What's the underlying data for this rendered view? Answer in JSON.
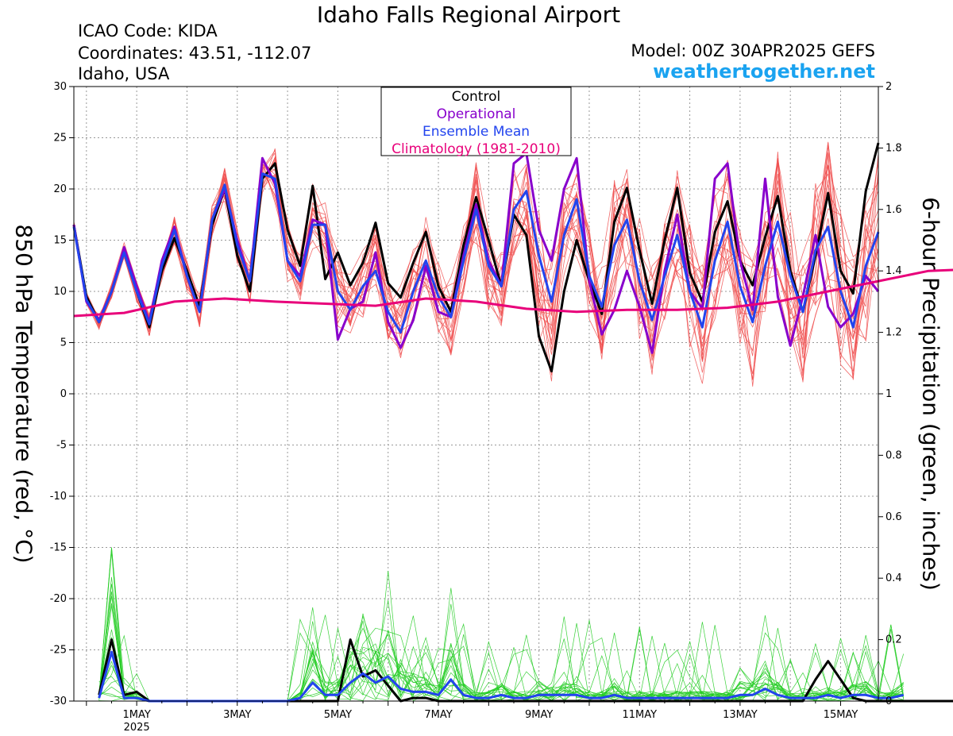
{
  "header": {
    "title": "Idaho Falls Regional Airport",
    "icao": "ICAO Code: KIDA",
    "coordinates": "Coordinates: 43.51, -112.07",
    "region": "Idaho, USA",
    "model": "Model: 00Z 30APR2025 GEFS",
    "site": "weathertogether.net"
  },
  "chart_data": {
    "type": "line",
    "ylabel_left": "850 hPa Temperature (red, °C)",
    "ylabel_right": "6-hour Precipitation (green, inches)",
    "ylim_left": [
      -30,
      30
    ],
    "yticks_left": [
      30,
      25,
      20,
      15,
      10,
      5,
      0,
      -5,
      -10,
      -15,
      -20,
      -25,
      -30
    ],
    "ylim_right": [
      0,
      2
    ],
    "yticks_right": [
      "2",
      "1.8",
      "1.6",
      "1.4",
      "1.2",
      "1",
      "0.8",
      "0.6",
      "0.4",
      "0.2",
      "0"
    ],
    "x_day_range": [
      -0.75,
      15.25
    ],
    "x_ticks": [
      {
        "day": 0.5,
        "label": "1MAY",
        "sub": "2025"
      },
      {
        "day": 2.5,
        "label": "3MAY"
      },
      {
        "day": 4.5,
        "label": "5MAY"
      },
      {
        "day": 6.5,
        "label": "7MAY"
      },
      {
        "day": 8.5,
        "label": "9MAY"
      },
      {
        "day": 10.5,
        "label": "11MAY"
      },
      {
        "day": 12.5,
        "label": "13MAY"
      },
      {
        "day": 14.5,
        "label": "15MAY"
      }
    ],
    "grid": true,
    "legend_position": "top-center",
    "legend": [
      {
        "name": "Control",
        "color": "#000000"
      },
      {
        "name": "Operational",
        "color": "#8800cc"
      },
      {
        "name": "Ensemble Mean",
        "color": "#2244ee"
      },
      {
        "name": "Climatology (1981-2010)",
        "color": "#e8007a"
      }
    ],
    "temperature_series": [
      {
        "name": "Control",
        "color": "#000000",
        "x_start_day": -0.75,
        "step_days": 0.25,
        "values": [
          16.5,
          9.5,
          7.0,
          10.0,
          14.0,
          10.0,
          6.5,
          12.0,
          15.2,
          12.0,
          8.5,
          16.5,
          20.0,
          13.5,
          10.0,
          21.0,
          22.5,
          16.0,
          12.5,
          20.3,
          11.2,
          13.8,
          10.6,
          12.8,
          16.7,
          10.8,
          9.4,
          12.8,
          15.8,
          10.5,
          8.0,
          14.5,
          19.2,
          15.0,
          10.5,
          17.5,
          15.5,
          5.6,
          2.2,
          10.0,
          15.0,
          11.0,
          7.8,
          16.8,
          20.1,
          14.0,
          8.8,
          15.0,
          20.1,
          11.8,
          9.0,
          15.8,
          18.8,
          13.0,
          10.6,
          15.3,
          19.3,
          12.0,
          8.0,
          13.5,
          19.6,
          12.0,
          9.8,
          19.8,
          24.5
        ]
      },
      {
        "name": "Operational",
        "color": "#8800cc",
        "x_start_day": -0.75,
        "step_days": 0.25,
        "values": [
          16.5,
          9.0,
          7.2,
          10.0,
          14.3,
          10.5,
          7.0,
          13.0,
          16.3,
          11.5,
          8.0,
          17.0,
          20.0,
          15.0,
          11.0,
          23.0,
          20.5,
          13.0,
          11.5,
          17.0,
          16.5,
          5.3,
          8.3,
          9.0,
          13.8,
          7.0,
          4.5,
          7.2,
          12.5,
          8.0,
          7.5,
          13.5,
          18.5,
          13.0,
          10.5,
          22.5,
          23.5,
          16.0,
          13.0,
          20.0,
          23.0,
          11.0,
          5.8,
          8.2,
          12.0,
          8.5,
          4.0,
          12.0,
          17.5,
          10.0,
          8.3,
          21.0,
          22.5,
          13.0,
          8.2,
          21.0,
          9.5,
          4.7,
          9.5,
          15.5,
          8.5,
          6.5,
          7.8,
          11.5,
          10.0
        ]
      },
      {
        "name": "Ensemble Mean",
        "color": "#2244ee",
        "x_start_day": -0.75,
        "step_days": 0.25,
        "values": [
          16.3,
          9.2,
          7.0,
          10.0,
          13.8,
          10.0,
          6.8,
          12.5,
          16.0,
          11.5,
          8.0,
          17.0,
          20.4,
          14.5,
          11.0,
          21.5,
          21.0,
          13.0,
          11.0,
          16.5,
          16.5,
          10.0,
          8.2,
          10.5,
          12.0,
          8.0,
          6.0,
          10.0,
          13.0,
          9.5,
          7.5,
          13.0,
          18.0,
          12.5,
          10.5,
          18.0,
          19.8,
          13.5,
          9.0,
          15.5,
          19.0,
          11.5,
          8.5,
          14.5,
          17.0,
          11.0,
          7.2,
          11.5,
          15.5,
          10.0,
          6.5,
          13.0,
          16.8,
          10.5,
          7.0,
          12.5,
          16.8,
          11.5,
          8.0,
          14.0,
          16.3,
          10.0,
          6.5,
          12.5,
          15.8
        ]
      },
      {
        "name": "Climatology (1981-2010)",
        "color": "#e8007a",
        "x_start_day": -0.75,
        "step_days": 1.0,
        "values": [
          7.6,
          7.9,
          9.0,
          9.3,
          9.0,
          8.8,
          8.6,
          9.3,
          9.0,
          8.3,
          8.0,
          8.2,
          8.2,
          8.4,
          9.0,
          10.0,
          11.0,
          12.0,
          12.2
        ]
      }
    ],
    "precipitation_series": [
      {
        "name": "Control",
        "color": "#000000",
        "x_start_day": -0.25,
        "step_days": 0.25,
        "values": [
          0.02,
          0.2,
          0.02,
          0.03,
          0,
          0,
          0,
          0,
          0,
          0,
          0,
          0,
          0,
          0,
          0,
          0,
          0,
          0,
          0,
          0,
          0.2,
          0.08,
          0.1,
          0.05,
          0,
          0.01,
          0.01,
          0,
          0,
          0,
          0,
          0,
          0,
          0,
          0,
          0,
          0,
          0,
          0,
          0,
          0,
          0,
          0,
          0,
          0,
          0,
          0,
          0,
          0,
          0,
          0,
          0,
          0,
          0,
          0,
          0,
          0,
          0.07,
          0.13,
          0.07,
          0.01,
          0,
          0,
          0,
          0,
          0,
          0,
          0,
          0
        ]
      },
      {
        "name": "Ensemble Mean",
        "color": "#2244ee",
        "x_start_day": -0.25,
        "step_days": 0.25,
        "values": [
          0.01,
          0.16,
          0.01,
          0.01,
          0,
          0,
          0,
          0,
          0,
          0,
          0,
          0,
          0,
          0,
          0,
          0,
          0.01,
          0.06,
          0.02,
          0.02,
          0.06,
          0.09,
          0.06,
          0.08,
          0.04,
          0.03,
          0.03,
          0.02,
          0.07,
          0.02,
          0.01,
          0.01,
          0.02,
          0.01,
          0.01,
          0.02,
          0.02,
          0.02,
          0.02,
          0.01,
          0.01,
          0.02,
          0.01,
          0.01,
          0.01,
          0.01,
          0.01,
          0.01,
          0.01,
          0.01,
          0.01,
          0.02,
          0.02,
          0.04,
          0.02,
          0.01,
          0.01,
          0.01,
          0.02,
          0.01,
          0.02,
          0.02,
          0.01,
          0.01,
          0.02
        ]
      }
    ],
    "ensemble_member_color_temperature": "#f05050",
    "ensemble_member_color_precipitation": "#22cc22"
  }
}
